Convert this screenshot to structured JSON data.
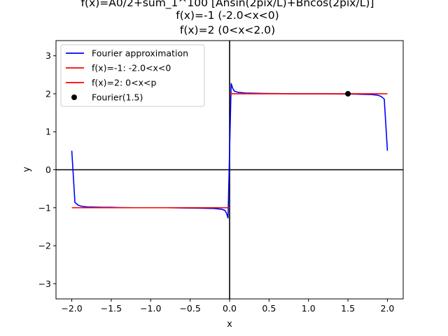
{
  "chart_data": {
    "type": "line",
    "title_lines": [
      "f(x)=A0/2+sum_1^100 [Ansin(2pix/L)+Bncos(2pix/L)]",
      "f(x)=-1 (-2.0<x<0)",
      "f(x)=2 (0<x<2.0)"
    ],
    "xlabel": "x",
    "ylabel": "y",
    "xlim": [
      -2.2,
      2.2
    ],
    "ylim": [
      -3.4,
      3.4
    ],
    "xticks": [
      -2.0,
      -1.5,
      -1.0,
      -0.5,
      0.0,
      0.5,
      1.0,
      1.5,
      2.0
    ],
    "xtick_labels": [
      "−2.0",
      "−1.5",
      "−1.0",
      "−0.5",
      "0.0",
      "0.5",
      "1.0",
      "1.5",
      "2.0"
    ],
    "yticks": [
      -3,
      -2,
      -1,
      0,
      1,
      2,
      3
    ],
    "ytick_labels": [
      "−3",
      "−2",
      "−1",
      "0",
      "1",
      "2",
      "3"
    ],
    "grid": false,
    "legend_position": "top-left",
    "reference_lines": {
      "x": 0,
      "y": 0,
      "color": "#000000"
    },
    "series": [
      {
        "name": "Fourier approximation",
        "color": "#0000ff",
        "type": "line",
        "x": [
          -2.0,
          -1.96,
          -1.92,
          -1.88,
          -1.84,
          -1.8,
          -1.7,
          -1.6,
          -1.5,
          -1.4,
          -1.2,
          -1.0,
          -0.8,
          -0.6,
          -0.4,
          -0.2,
          -0.1,
          -0.06,
          -0.04,
          -0.02,
          0.0,
          0.02,
          0.04,
          0.06,
          0.1,
          0.2,
          0.4,
          0.6,
          0.8,
          1.0,
          1.2,
          1.4,
          1.6,
          1.7,
          1.8,
          1.84,
          1.88,
          1.92,
          1.96,
          2.0
        ],
        "y": [
          0.5,
          -0.86,
          -0.93,
          -0.96,
          -0.97,
          -0.98,
          -0.985,
          -0.99,
          -0.99,
          -0.995,
          -1.0,
          -1.0,
          -1.0,
          -1.005,
          -1.01,
          -1.02,
          -1.04,
          -1.07,
          -1.14,
          -1.27,
          0.5,
          2.27,
          2.14,
          2.07,
          2.04,
          2.02,
          2.01,
          2.005,
          2.0,
          2.0,
          2.0,
          1.995,
          1.99,
          1.985,
          1.98,
          1.97,
          1.96,
          1.93,
          1.86,
          0.5
        ]
      },
      {
        "name": "f(x)=-1: -2.0<x<0",
        "color": "#ff0000",
        "type": "line",
        "x": [
          -2.0,
          0.0
        ],
        "y": [
          -1,
          -1
        ]
      },
      {
        "name": "f(x)=2: 0<x<p",
        "color": "#ff0000",
        "type": "line",
        "x": [
          0.0,
          2.0
        ],
        "y": [
          2,
          2
        ]
      },
      {
        "name": "Fourier(1.5)",
        "color": "#000000",
        "type": "scatter",
        "x": [
          1.5
        ],
        "y": [
          2.0
        ]
      }
    ]
  }
}
